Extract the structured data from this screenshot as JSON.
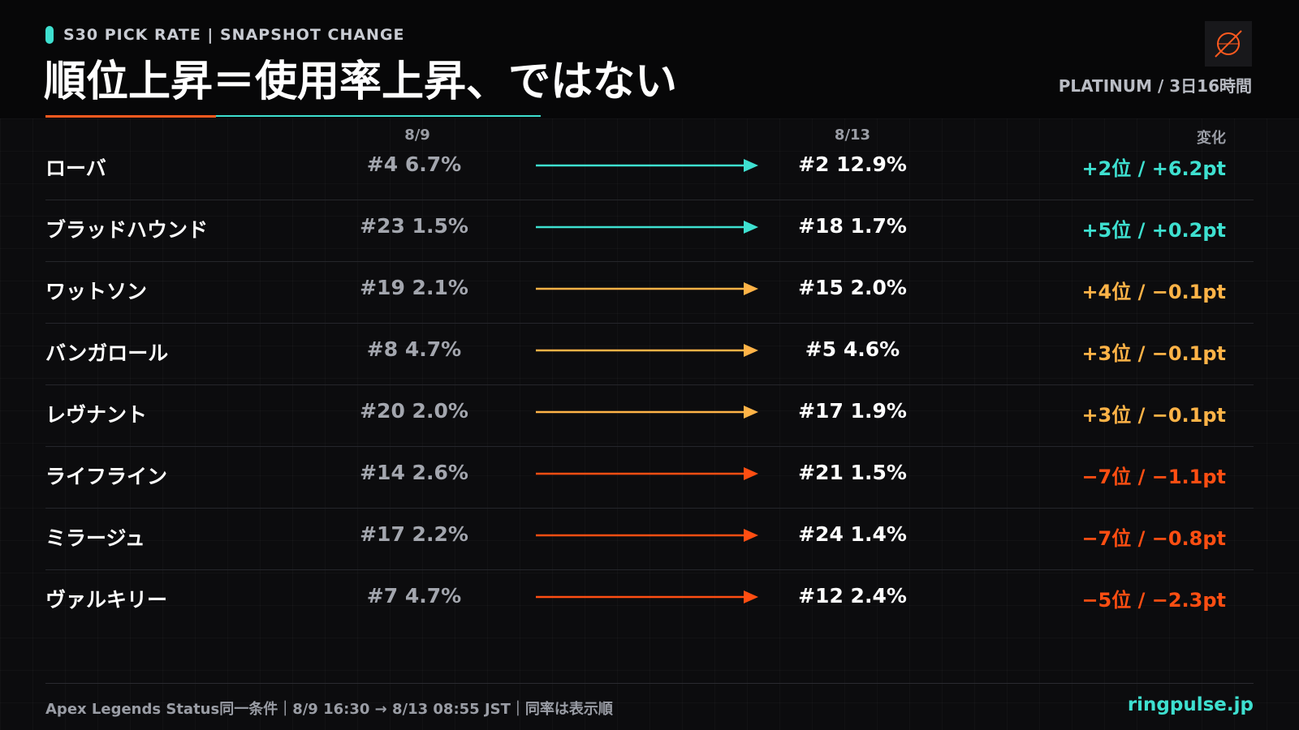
{
  "header": {
    "kicker": "S30 PICK RATE | SNAPSHOT CHANGE",
    "title": "順位上昇＝使用率上昇、ではない",
    "meta": "PLATINUM / 3日16時間"
  },
  "columns": {
    "from": "8/9",
    "to": "8/13",
    "change": "変化"
  },
  "colors": {
    "up": "#3ee0d0",
    "mixed": "#ffb347",
    "down": "#ff4e12"
  },
  "chart_data": {
    "type": "table",
    "columns": [
      "",
      "8/9",
      "8/13",
      "変化"
    ],
    "rows": [
      {
        "name": "ローバ",
        "from": "#4 6.7%",
        "to": "#2 12.9%",
        "change": "+2位 / +6.2pt",
        "status": "up",
        "from_rank": 4,
        "from_rate": 6.7,
        "to_rank": 2,
        "to_rate": 12.9,
        "rank_change": 2,
        "rate_change": 6.2
      },
      {
        "name": "ブラッドハウンド",
        "from": "#23 1.5%",
        "to": "#18 1.7%",
        "change": "+5位 / +0.2pt",
        "status": "up",
        "from_rank": 23,
        "from_rate": 1.5,
        "to_rank": 18,
        "to_rate": 1.7,
        "rank_change": 5,
        "rate_change": 0.2
      },
      {
        "name": "ワットソン",
        "from": "#19 2.1%",
        "to": "#15 2.0%",
        "change": "+4位 / −0.1pt",
        "status": "mixed",
        "from_rank": 19,
        "from_rate": 2.1,
        "to_rank": 15,
        "to_rate": 2.0,
        "rank_change": 4,
        "rate_change": -0.1
      },
      {
        "name": "バンガロール",
        "from": "#8 4.7%",
        "to": "#5 4.6%",
        "change": "+3位 / −0.1pt",
        "status": "mixed",
        "from_rank": 8,
        "from_rate": 4.7,
        "to_rank": 5,
        "to_rate": 4.6,
        "rank_change": 3,
        "rate_change": -0.1
      },
      {
        "name": "レヴナント",
        "from": "#20 2.0%",
        "to": "#17 1.9%",
        "change": "+3位 / −0.1pt",
        "status": "mixed",
        "from_rank": 20,
        "from_rate": 2.0,
        "to_rank": 17,
        "to_rate": 1.9,
        "rank_change": 3,
        "rate_change": -0.1
      },
      {
        "name": "ライフライン",
        "from": "#14 2.6%",
        "to": "#21 1.5%",
        "change": "−7位 / −1.1pt",
        "status": "down",
        "from_rank": 14,
        "from_rate": 2.6,
        "to_rank": 21,
        "to_rate": 1.5,
        "rank_change": -7,
        "rate_change": -1.1
      },
      {
        "name": "ミラージュ",
        "from": "#17 2.2%",
        "to": "#24 1.4%",
        "change": "−7位 / −0.8pt",
        "status": "down",
        "from_rank": 17,
        "from_rate": 2.2,
        "to_rank": 24,
        "to_rate": 1.4,
        "rank_change": -7,
        "rate_change": -0.8
      },
      {
        "name": "ヴァルキリー",
        "from": "#7 4.7%",
        "to": "#12 2.4%",
        "change": "−5位 / −2.3pt",
        "status": "down",
        "from_rank": 7,
        "from_rate": 4.7,
        "to_rank": 12,
        "to_rate": 2.4,
        "rank_change": -5,
        "rate_change": -2.3
      }
    ]
  },
  "footer": {
    "source": "Apex Legends Status同一条件｜8/9 16:30 → 8/13 08:55 JST｜同率は表示順",
    "site": "ringpulse.jp"
  }
}
